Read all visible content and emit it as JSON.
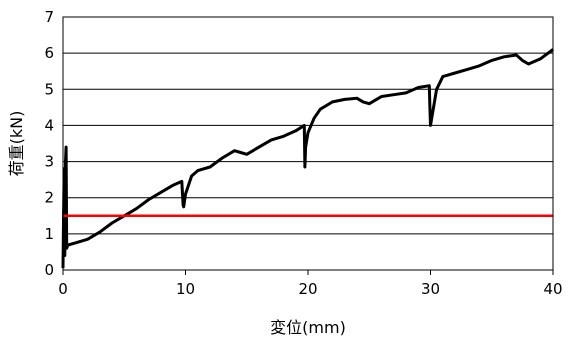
{
  "chart_data": {
    "type": "line",
    "title": "",
    "xlabel": "変位(mm)",
    "ylabel": "荷重(kN)",
    "xlim": [
      0,
      40
    ],
    "ylim": [
      0,
      7
    ],
    "xticks": [
      0,
      10,
      20,
      30,
      40
    ],
    "yticks": [
      0,
      1,
      2,
      3,
      4,
      5,
      6,
      7
    ],
    "grid": "horizontal",
    "legend": "none",
    "series": [
      {
        "color": "#000000",
        "x": [
          0,
          0.05,
          0.1,
          0.15,
          0.2,
          0.25,
          0.3,
          0.35,
          0.4,
          0.5,
          1,
          2,
          3,
          4,
          5,
          6,
          7,
          8,
          9,
          9.7,
          9.8,
          9.85,
          10,
          10.5,
          11,
          12,
          13,
          14,
          14.5,
          15,
          16,
          17,
          18,
          19,
          19.7,
          19.75,
          19.8,
          20,
          20.5,
          21,
          22,
          23,
          24,
          24.5,
          25,
          25.5,
          26,
          27,
          28,
          29,
          29.9,
          29.95,
          30,
          30.5,
          31,
          32,
          33,
          34,
          35,
          36,
          37,
          37.5,
          38,
          39,
          40
        ],
        "y": [
          0.05,
          1.6,
          2.8,
          0.4,
          3.0,
          3.4,
          0.6,
          0.65,
          0.7,
          0.7,
          0.75,
          0.85,
          1.05,
          1.3,
          1.5,
          1.7,
          1.95,
          2.15,
          2.35,
          2.45,
          1.8,
          1.75,
          2.1,
          2.6,
          2.75,
          2.85,
          3.1,
          3.3,
          3.25,
          3.2,
          3.4,
          3.6,
          3.7,
          3.85,
          4.0,
          2.85,
          3.4,
          3.8,
          4.2,
          4.45,
          4.65,
          4.72,
          4.75,
          4.65,
          4.6,
          4.7,
          4.8,
          4.85,
          4.9,
          5.05,
          5.1,
          4.5,
          4.0,
          5.0,
          5.35,
          5.45,
          5.55,
          5.65,
          5.8,
          5.9,
          5.95,
          5.8,
          5.7,
          5.85,
          6.1
        ]
      },
      {
        "color": "#ff0000",
        "x": [
          0,
          40
        ],
        "y": [
          1.5,
          1.5
        ]
      }
    ]
  }
}
